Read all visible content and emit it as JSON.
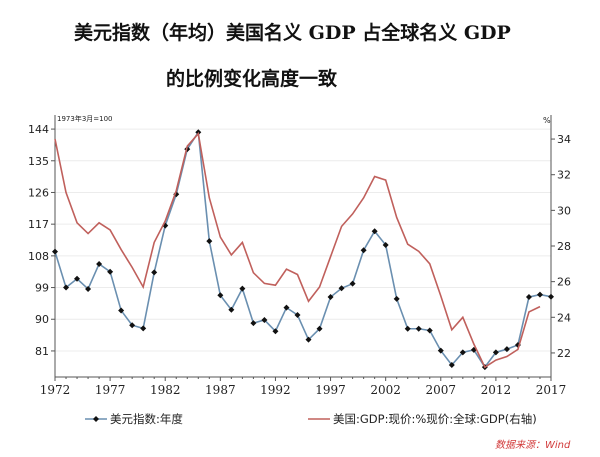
{
  "title": {
    "line1": "美元指数（年均）美国名义 GDP 占全球名义 GDP",
    "line2": "的比例变化高度一致"
  },
  "source": "数据来源：Wind",
  "chart_data": {
    "type": "line",
    "left_axis_note": "1973年3月=100",
    "right_axis_unit": "%",
    "x": [
      1972,
      1973,
      1974,
      1975,
      1976,
      1977,
      1978,
      1979,
      1980,
      1981,
      1982,
      1983,
      1984,
      1985,
      1986,
      1987,
      1988,
      1989,
      1990,
      1991,
      1992,
      1993,
      1994,
      1995,
      1996,
      1997,
      1998,
      1999,
      2000,
      2001,
      2002,
      2003,
      2004,
      2005,
      2006,
      2007,
      2008,
      2009,
      2010,
      2011,
      2012,
      2013,
      2014,
      2015,
      2016,
      2017
    ],
    "x_ticks": [
      "1972",
      "1977",
      "1982",
      "1987",
      "1992",
      "1997",
      "2002",
      "2007",
      "2012",
      "2017"
    ],
    "xlim": [
      1972,
      2017
    ],
    "left_ticks": [
      "144",
      "135",
      "126",
      "117",
      "108",
      "99",
      "90",
      "81"
    ],
    "left_ylim": [
      73.6,
      148
    ],
    "right_ticks": [
      "34",
      "32",
      "30",
      "28",
      "26",
      "24",
      "22"
    ],
    "right_ylim": [
      20.65,
      35.35
    ],
    "grid": true,
    "legend_position": "bottom",
    "series": [
      {
        "name": "美元指数:年度",
        "axis": "left",
        "color": "#6a8fb0",
        "marker": "diamond",
        "values": [
          109.2,
          99.0,
          101.5,
          98.6,
          105.7,
          103.5,
          92.5,
          88.3,
          87.4,
          103.3,
          116.6,
          125.5,
          138.3,
          143.1,
          112.2,
          96.8,
          92.7,
          98.7,
          88.9,
          89.8,
          86.6,
          93.3,
          91.2,
          84.2,
          87.3,
          96.3,
          98.8,
          100.1,
          109.6,
          115.0,
          111.1,
          95.8,
          87.3,
          87.3,
          86.8,
          81.1,
          77.0,
          80.6,
          81.3,
          76.4,
          80.6,
          81.5,
          82.7,
          96.3,
          97.0,
          96.4
        ]
      },
      {
        "name": "美国:GDP:现价:%现价:全球:GDP(右轴)",
        "axis": "right",
        "color": "#c0605c",
        "values": [
          34.0,
          31.0,
          29.3,
          28.7,
          29.3,
          28.9,
          27.8,
          26.8,
          25.7,
          28.2,
          29.4,
          31.1,
          33.6,
          34.3,
          30.7,
          28.5,
          27.5,
          28.2,
          26.5,
          25.9,
          25.8,
          26.7,
          26.4,
          24.9,
          25.7,
          27.4,
          29.1,
          29.8,
          30.7,
          31.9,
          31.7,
          29.6,
          28.1,
          27.7,
          27.0,
          25.2,
          23.3,
          24.0,
          22.5,
          21.2,
          21.6,
          21.8,
          22.2,
          24.3,
          24.6,
          null
        ]
      }
    ]
  }
}
